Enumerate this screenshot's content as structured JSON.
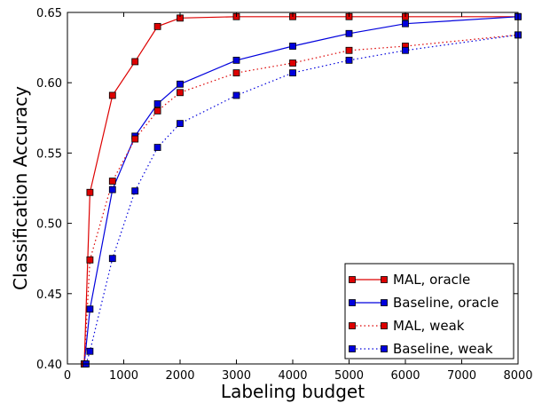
{
  "chart_data": {
    "type": "line",
    "title": "",
    "xlabel": "Labeling budget",
    "ylabel": "Classification Accuracy",
    "xlim": [
      0,
      8000
    ],
    "ylim": [
      0.4,
      0.65
    ],
    "xticks": [
      0,
      1000,
      2000,
      3000,
      4000,
      5000,
      6000,
      7000,
      8000
    ],
    "yticks": [
      0.4,
      0.45,
      0.5,
      0.55,
      0.6,
      0.65
    ],
    "xtick_labels": [
      "0",
      "1000",
      "2000",
      "3000",
      "4000",
      "5000",
      "6000",
      "7000",
      "8000"
    ],
    "ytick_labels": [
      "0.40",
      "0.45",
      "0.50",
      "0.55",
      "0.60",
      "0.65"
    ],
    "grid": false,
    "legend_position": "bottom-right",
    "series": [
      {
        "name": "MAL, oracle",
        "color": "#dd0000",
        "linestyle": "solid",
        "marker": "square",
        "x": [
          300,
          400,
          800,
          1200,
          1600,
          2000,
          3000,
          4000,
          5000,
          6000,
          8000
        ],
        "y": [
          0.4,
          0.522,
          0.591,
          0.615,
          0.64,
          0.646,
          0.647,
          0.647,
          0.647,
          0.647,
          0.647
        ]
      },
      {
        "name": "Baseline, oracle",
        "color": "#0000dd",
        "linestyle": "solid",
        "marker": "square",
        "x": [
          300,
          400,
          800,
          1200,
          1600,
          2000,
          3000,
          4000,
          5000,
          6000,
          8000
        ],
        "y": [
          0.4,
          0.439,
          0.524,
          0.562,
          0.585,
          0.599,
          0.616,
          0.626,
          0.635,
          0.642,
          0.647
        ]
      },
      {
        "name": "MAL, weak",
        "color": "#dd0000",
        "linestyle": "dotted",
        "marker": "square",
        "x": [
          300,
          400,
          800,
          1200,
          1600,
          2000,
          3000,
          4000,
          5000,
          6000,
          8000
        ],
        "y": [
          0.4,
          0.474,
          0.53,
          0.56,
          0.58,
          0.593,
          0.607,
          0.614,
          0.623,
          0.626,
          0.634
        ]
      },
      {
        "name": "Baseline, weak",
        "color": "#0000dd",
        "linestyle": "dotted",
        "marker": "square",
        "x": [
          330,
          400,
          800,
          1200,
          1600,
          2000,
          3000,
          4000,
          5000,
          6000,
          8000
        ],
        "y": [
          0.4,
          0.409,
          0.475,
          0.523,
          0.554,
          0.571,
          0.591,
          0.607,
          0.616,
          0.623,
          0.634
        ]
      }
    ]
  }
}
